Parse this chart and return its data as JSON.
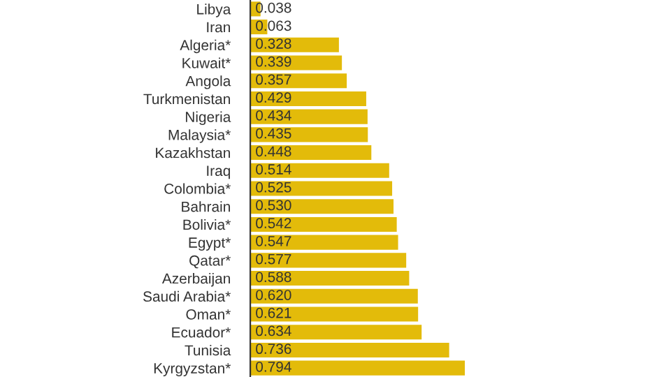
{
  "chart_data": {
    "type": "bar",
    "orientation": "horizontal",
    "value_labels": [
      "0.038",
      "0.063",
      "0.328",
      "0.339",
      "0.357",
      "0.429",
      "0.434",
      "0.435",
      "0.448",
      "0.514",
      "0.525",
      "0.530",
      "0.542",
      "0.547",
      "0.577",
      "0.588",
      "0.620",
      "0.621",
      "0.634",
      "0.736",
      "0.794"
    ],
    "color": "#e3bb0a",
    "grid": false,
    "legend": false,
    "tick_labels": "y",
    "categories": [
      "Libya",
      "Iran",
      "Algeria*",
      "Kuwait*",
      "Angola",
      "Turkmenistan",
      "Nigeria",
      "Malaysia*",
      "Kazakhstan",
      "Iraq",
      "Colombia*",
      "Bahrain",
      "Bolivia*",
      "Egypt*",
      "Qatar*",
      "Azerbaijan",
      "Saudi Arabia*",
      "Oman*",
      "Ecuador*",
      "Tunisia",
      "Kyrgyzstan*"
    ],
    "values": [
      0.038,
      0.063,
      0.328,
      0.339,
      0.357,
      0.429,
      0.434,
      0.435,
      0.448,
      0.514,
      0.525,
      0.53,
      0.542,
      0.547,
      0.577,
      0.588,
      0.62,
      0.621,
      0.634,
      0.736,
      0.794
    ]
  }
}
